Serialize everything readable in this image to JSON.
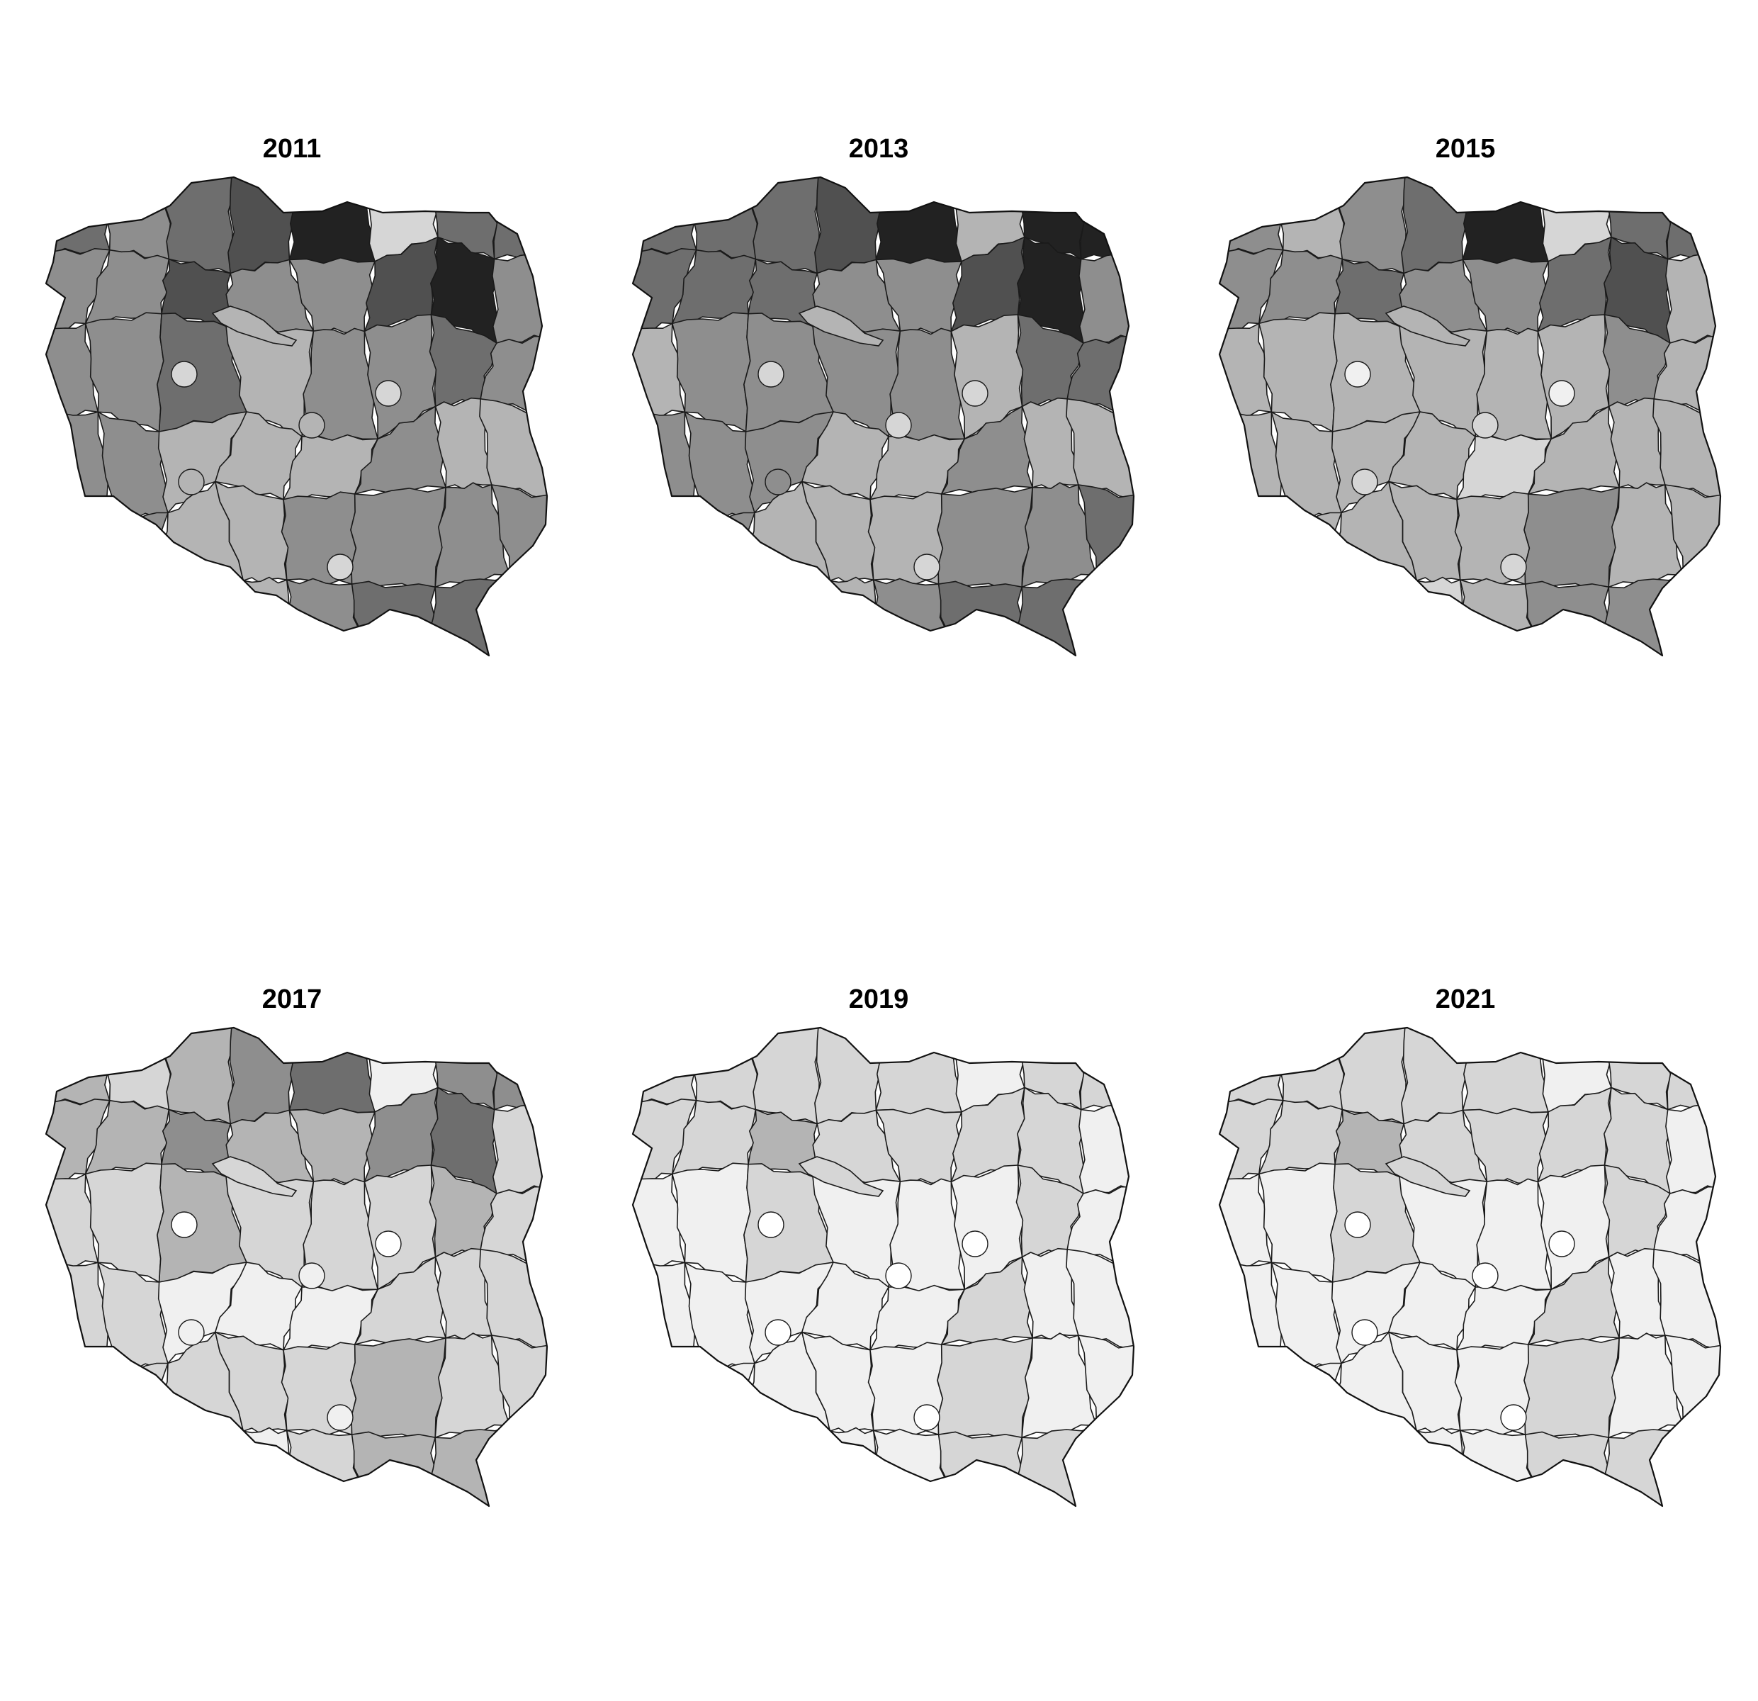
{
  "figure": {
    "panels": [
      {
        "title": "2011",
        "shades": [
          2,
          3,
          2,
          1,
          0,
          5,
          2,
          2,
          3,
          3,
          1,
          3,
          3,
          1,
          0,
          3,
          3,
          3,
          2,
          4,
          3,
          3,
          2,
          3,
          3,
          3,
          4,
          4,
          4,
          3,
          4,
          4,
          1,
          3,
          4,
          4,
          3,
          3,
          3,
          3,
          3,
          3,
          4,
          4,
          3,
          2
        ],
        "lake": 4,
        "cities": [
          5,
          5,
          4,
          4,
          5
        ]
      },
      {
        "title": "2013",
        "shades": [
          2,
          2,
          2,
          1,
          0,
          4,
          0,
          0,
          2,
          2,
          2,
          3,
          3,
          1,
          0,
          3,
          4,
          3,
          3,
          3,
          3,
          4,
          2,
          2,
          3,
          3,
          3,
          4,
          4,
          3,
          4,
          4,
          2,
          3,
          4,
          4,
          4,
          3,
          3,
          2,
          3,
          3,
          4,
          4,
          3,
          2
        ],
        "lake": 4,
        "cities": [
          5,
          5,
          5,
          3,
          5
        ]
      },
      {
        "title": "2015",
        "shades": [
          3,
          4,
          3,
          2,
          0,
          5,
          2,
          2,
          3,
          3,
          2,
          3,
          3,
          2,
          1,
          4,
          4,
          4,
          4,
          4,
          4,
          4,
          3,
          4,
          4,
          4,
          4,
          4,
          5,
          4,
          4,
          4,
          2,
          4,
          4,
          4,
          4,
          3,
          4,
          4,
          4,
          4,
          5,
          5,
          4,
          3
        ],
        "lake": 4,
        "cities": [
          6,
          6,
          5,
          5,
          5
        ]
      },
      {
        "title": "2017",
        "shades": [
          4,
          5,
          4,
          3,
          2,
          6,
          3,
          3,
          4,
          4,
          3,
          4,
          4,
          3,
          2,
          5,
          5,
          5,
          4,
          5,
          5,
          5,
          4,
          5,
          5,
          5,
          6,
          6,
          6,
          5,
          5,
          5,
          3,
          5,
          5,
          5,
          5,
          4,
          5,
          5,
          5,
          5,
          6,
          6,
          5,
          4
        ],
        "lake": 5,
        "cities": [
          7,
          7,
          6,
          6,
          6
        ]
      },
      {
        "title": "2019",
        "shades": [
          5,
          5,
          5,
          5,
          5,
          6,
          5,
          5,
          5,
          5,
          4,
          5,
          5,
          5,
          5,
          6,
          6,
          6,
          5,
          6,
          6,
          6,
          5,
          6,
          6,
          6,
          6,
          6,
          6,
          5,
          6,
          6,
          4,
          6,
          6,
          6,
          6,
          5,
          6,
          6,
          6,
          6,
          7,
          6,
          6,
          5
        ],
        "lake": 5,
        "cities": [
          7,
          7,
          7,
          7,
          7
        ]
      },
      {
        "title": "2021",
        "shades": [
          5,
          5,
          5,
          5,
          5,
          6,
          5,
          5,
          5,
          5,
          4,
          5,
          5,
          5,
          5,
          6,
          6,
          6,
          5,
          6,
          6,
          6,
          5,
          6,
          6,
          6,
          6,
          6,
          6,
          5,
          6,
          6,
          4,
          6,
          6,
          6,
          6,
          5,
          6,
          6,
          6,
          6,
          7,
          6,
          6,
          5
        ],
        "lake": 5,
        "cities": [
          7,
          7,
          7,
          7,
          7
        ]
      }
    ],
    "palette": [
      "#222222",
      "#505050",
      "#6e6e6e",
      "#8e8e8e",
      "#b4b4b4",
      "#d6d6d6",
      "#f0f0f0",
      "#ffffff"
    ]
  }
}
